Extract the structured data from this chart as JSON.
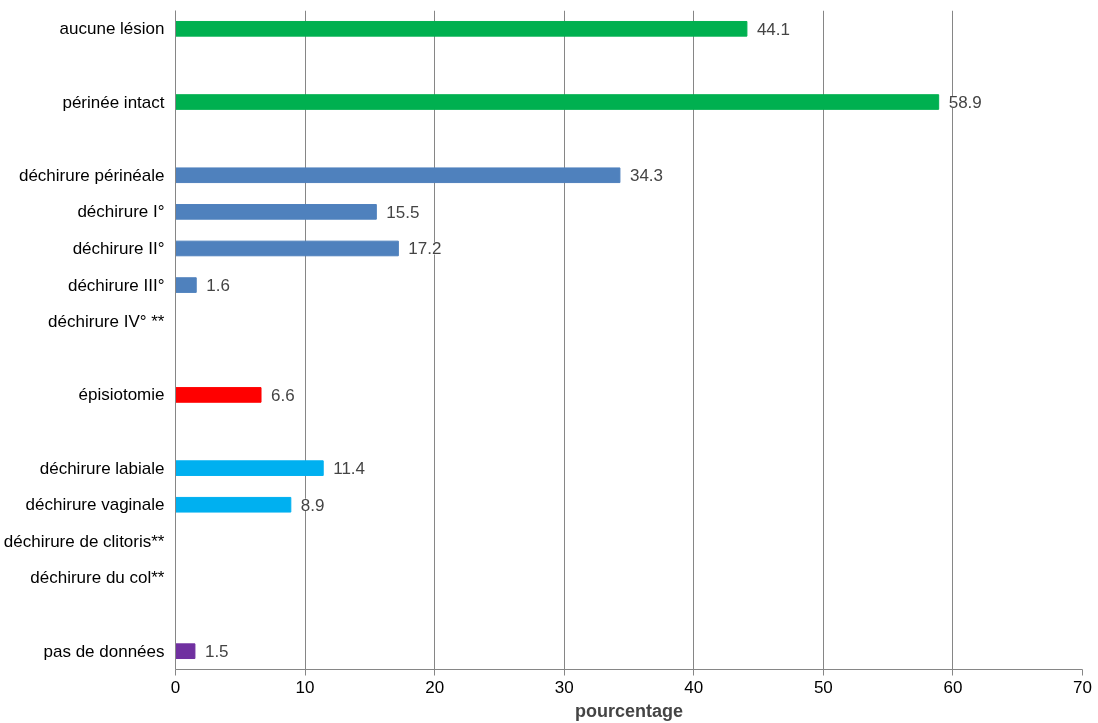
{
  "chart_data": {
    "type": "bar",
    "orientation": "horizontal",
    "xlabel": "pourcentage",
    "categories": [
      "aucune lésion",
      null,
      "périnée intact",
      null,
      "déchirure périnéale",
      "déchirure I°",
      "déchirure II°",
      "déchirure III°",
      "déchirure IV° **",
      null,
      "épisiotomie",
      null,
      "déchirure labiale",
      "déchirure vaginale",
      "déchirure de clitoris**",
      "déchirure du col**",
      null,
      "pas de données"
    ],
    "values": [
      44.1,
      null,
      58.9,
      null,
      34.3,
      15.5,
      17.2,
      1.6,
      null,
      null,
      6.6,
      null,
      11.4,
      8.9,
      null,
      null,
      null,
      1.5
    ],
    "colors": [
      "#00b050",
      "#00b050",
      "#00b050",
      "#00b050",
      "#4f81bd",
      "#4f81bd",
      "#4f81bd",
      "#4f81bd",
      "#4f81bd",
      "#ff0000",
      "#ff0000",
      "#00b0f0",
      "#00b0f0",
      "#00b0f0",
      "#00b0f0",
      "#00b0f0",
      "#7030a0",
      "#7030a0"
    ],
    "xlim": [
      0,
      70
    ],
    "xticks": [
      0,
      10,
      20,
      30,
      40,
      50,
      60,
      70
    ],
    "grid": "x",
    "data_labels": true
  }
}
